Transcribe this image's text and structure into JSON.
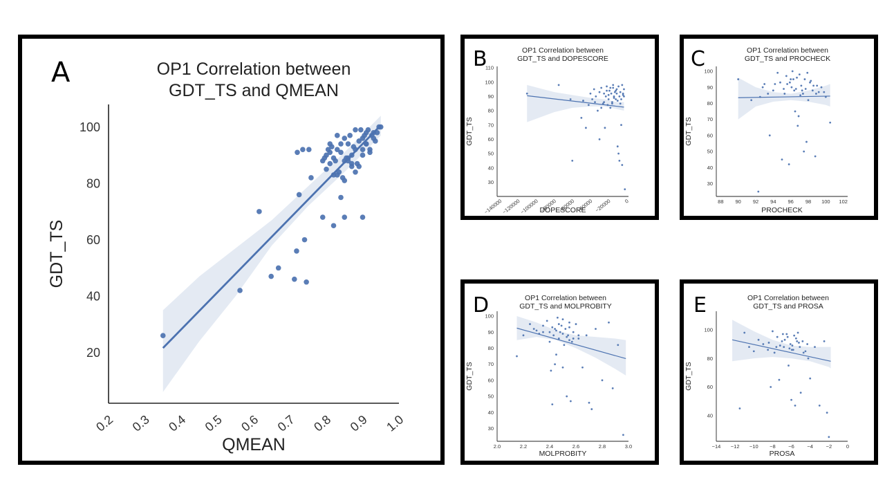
{
  "chart_data": [
    {
      "type": "scatter",
      "panel_label": "A",
      "title": "OP1 Correlation between\nGDT_TS and QMEAN",
      "xlabel": "QMEAN",
      "ylabel": "GDT_TS",
      "xlim": [
        0.2,
        1.0
      ],
      "ylim": [
        2,
        108
      ],
      "xticks": [
        0.2,
        0.3,
        0.4,
        0.5,
        0.6,
        0.7,
        0.8,
        0.9,
        1.0
      ],
      "xtick_labels": [
        "0.2",
        "0.3",
        "0.4",
        "0.5",
        "0.6",
        "0.7",
        "0.8",
        "0.9",
        "1.0"
      ],
      "yticks": [
        20,
        40,
        60,
        80,
        100
      ],
      "ytick_labels": [
        "20",
        "40",
        "60",
        "80",
        "100"
      ],
      "grid": false,
      "regression": {
        "x": [
          0.35,
          0.95
        ],
        "y": [
          21.6,
          100.6
        ]
      },
      "confidence_band": {
        "x": [
          0.35,
          0.45,
          0.55,
          0.65,
          0.75,
          0.85,
          0.95
        ],
        "lower": [
          6,
          24,
          40,
          58,
          72,
          84,
          97
        ],
        "upper": [
          35,
          47,
          57,
          67,
          79,
          91,
          104
        ]
      },
      "points": {
        "x": [
          0.35,
          0.562,
          0.615,
          0.648,
          0.668,
          0.712,
          0.718,
          0.72,
          0.725,
          0.74,
          0.745,
          0.752,
          0.758,
          0.79,
          0.795,
          0.81,
          0.82,
          0.84,
          0.85,
          0.9,
          0.735,
          0.79,
          0.8,
          0.805,
          0.81,
          0.815,
          0.82,
          0.825,
          0.83,
          0.835,
          0.84,
          0.845,
          0.85,
          0.855,
          0.86,
          0.865,
          0.87,
          0.875,
          0.88,
          0.885,
          0.89,
          0.895,
          0.9,
          0.905,
          0.91,
          0.915,
          0.92,
          0.925,
          0.93,
          0.935,
          0.94,
          0.945,
          0.95,
          0.8,
          0.83,
          0.86,
          0.87,
          0.88,
          0.9,
          0.92,
          0.85,
          0.9,
          0.91,
          0.86,
          0.88,
          0.84,
          0.87,
          0.82,
          0.81,
          0.83,
          0.89,
          0.91,
          0.93,
          0.85
        ],
        "y": [
          26,
          42,
          70,
          47,
          50,
          46,
          56,
          91,
          76,
          60,
          45,
          92,
          82,
          68,
          89,
          91,
          65,
          75,
          68,
          68,
          92,
          88,
          90,
          92,
          87,
          93,
          83,
          88,
          97,
          84,
          91,
          82,
          96,
          89,
          88,
          97,
          86,
          93,
          99,
          87,
          95,
          99,
          92,
          97,
          94,
          99,
          92,
          97,
          98,
          95,
          98,
          100,
          100,
          85,
          92,
          89,
          90,
          84,
          96,
          91,
          81,
          90,
          98,
          94,
          92,
          94,
          87,
          89,
          94,
          83,
          86,
          94,
          96,
          88
        ]
      }
    },
    {
      "type": "scatter",
      "panel_label": "B",
      "title": "OP1 Correlation between\nGDT_TS and DOPESCORE",
      "xlabel": "DOPESCORE",
      "ylabel": "GDT_TS",
      "xlim": [
        -143000,
        2000
      ],
      "ylim": [
        20,
        111
      ],
      "xticks": [
        -140000,
        -120000,
        -100000,
        -80000,
        -60000,
        -40000,
        -20000,
        0
      ],
      "xtick_labels": [
        "−140000",
        "−120000",
        "−100000",
        "−80000",
        "−60000",
        "−40000",
        "−20000",
        "0"
      ],
      "yticks": [
        30,
        40,
        50,
        60,
        70,
        80,
        90,
        100,
        110
      ],
      "ytick_labels": [
        "30",
        "40",
        "50",
        "60",
        "70",
        "80",
        "90",
        "100",
        "110"
      ],
      "grid": false,
      "regression": {
        "x": [
          -110000,
          -3000
        ],
        "y": [
          90.5,
          82.5
        ]
      },
      "confidence_band": {
        "x": [
          -110000,
          -80000,
          -60000,
          -40000,
          -25000,
          -10000,
          -3000
        ],
        "lower": [
          72,
          79,
          82,
          83,
          83,
          81,
          80
        ],
        "upper": [
          98,
          93,
          91,
          89,
          88,
          86,
          86
        ]
      },
      "points": {
        "x": [
          -110000,
          -75000,
          -62000,
          -60000,
          -50000,
          -48000,
          -45000,
          -42000,
          -40000,
          -38000,
          -36000,
          -34000,
          -32000,
          -30000,
          -28000,
          -26000,
          -25000,
          -24000,
          -23000,
          -22000,
          -21000,
          -20000,
          -19000,
          -18000,
          -17000,
          -16000,
          -15000,
          -14000,
          -13000,
          -12000,
          -11000,
          -10000,
          -9000,
          -8000,
          -7000,
          -6000,
          -5000,
          -4000,
          -3000,
          -2000,
          -30000,
          -20000,
          -10000,
          -15000,
          -25000,
          -8000,
          -5000,
          -12000,
          -6000,
          -18000,
          -35000,
          -28000,
          -22000,
          -14000,
          -9000,
          -4000,
          -7000,
          -3000,
          -16000,
          -11000
        ],
        "y": [
          92,
          98,
          88,
          45,
          75,
          87,
          68,
          84,
          92,
          88,
          95,
          90,
          80,
          60,
          96,
          85,
          92,
          68,
          90,
          97,
          84,
          88,
          94,
          82,
          92,
          86,
          98,
          90,
          93,
          88,
          95,
          55,
          50,
          45,
          85,
          70,
          42,
          92,
          95,
          25,
          93,
          91,
          87,
          96,
          86,
          90,
          98,
          94,
          88,
          96,
          86,
          82,
          94,
          89,
          97,
          91,
          93,
          90,
          85,
          92
        ]
      }
    },
    {
      "type": "scatter",
      "panel_label": "C",
      "title": "OP1 Correlation between\nGDT_TS and PROCHECK",
      "xlabel": "PROCHECK",
      "ylabel": "GDT_TS",
      "xlim": [
        87.5,
        102.5
      ],
      "ylim": [
        22,
        103
      ],
      "xticks": [
        88,
        90,
        92,
        94,
        96,
        98,
        100,
        102
      ],
      "xtick_labels": [
        "88",
        "90",
        "92",
        "94",
        "96",
        "98",
        "100",
        "102"
      ],
      "yticks": [
        30,
        40,
        50,
        60,
        70,
        80,
        90,
        100
      ],
      "ytick_labels": [
        "30",
        "40",
        "50",
        "60",
        "70",
        "80",
        "90",
        "100"
      ],
      "grid": false,
      "regression": {
        "x": [
          90,
          100.5
        ],
        "y": [
          83.5,
          84.5
        ]
      },
      "confidence_band": {
        "x": [
          90,
          92,
          94,
          96,
          98,
          100,
          100.5
        ],
        "lower": [
          70,
          78,
          81,
          82,
          81,
          79,
          78
        ],
        "upper": [
          96,
          90,
          87,
          86,
          88,
          91,
          92
        ]
      },
      "points": {
        "x": [
          90,
          91.5,
          92.3,
          92.5,
          93,
          93.6,
          94,
          94.5,
          95,
          95.3,
          95.6,
          95.8,
          96,
          96.2,
          96.4,
          96.5,
          96.6,
          96.8,
          97,
          97.2,
          97.4,
          97.5,
          97.6,
          97.8,
          98,
          98.2,
          98.5,
          98.8,
          99,
          99.5,
          100,
          100.5,
          95.5,
          96.1,
          97.3,
          98.3,
          99.2,
          94.8,
          96.9,
          97.9,
          95.2,
          93.4,
          97.1,
          98.6,
          96.3,
          92.8,
          99.8,
          95.9,
          97.7,
          96.7,
          98.9,
          94.2
        ],
        "y": [
          95,
          82,
          25,
          84,
          92,
          60,
          88,
          99,
          45,
          86,
          92,
          42,
          95,
          100,
          88,
          75,
          89,
          66,
          98,
          91,
          86,
          50,
          95,
          56,
          82,
          93,
          88,
          47,
          91,
          90,
          84,
          68,
          97,
          90,
          88,
          94,
          87,
          93,
          72,
          99,
          89,
          86,
          85,
          91,
          95,
          90,
          87,
          93,
          89,
          96,
          86,
          92
        ]
      }
    },
    {
      "type": "scatter",
      "panel_label": "D",
      "title": "OP1 Correlation between\nGDT_TS and MOLPROBITY",
      "xlabel": "MOLPROBITY",
      "ylabel": "GDT_TS",
      "xlim": [
        2.0,
        3.0
      ],
      "ylim": [
        22,
        103
      ],
      "xticks": [
        2.0,
        2.2,
        2.4,
        2.6,
        2.8,
        3.0
      ],
      "xtick_labels": [
        "2.0",
        "2.2",
        "2.4",
        "2.6",
        "2.8",
        "3.0"
      ],
      "yticks": [
        30,
        40,
        50,
        60,
        70,
        80,
        90,
        100
      ],
      "ytick_labels": [
        "30",
        "40",
        "50",
        "60",
        "70",
        "80",
        "90",
        "100"
      ],
      "grid": false,
      "regression": {
        "x": [
          2.15,
          2.98
        ],
        "y": [
          92.5,
          73.5
        ]
      },
      "confidence_band": {
        "x": [
          2.15,
          2.3,
          2.45,
          2.6,
          2.75,
          2.9,
          2.98
        ],
        "lower": [
          85,
          87,
          85,
          80,
          74,
          67,
          63
        ],
        "upper": [
          100,
          96,
          91,
          88,
          87,
          86,
          85
        ]
      },
      "points": {
        "x": [
          2.15,
          2.2,
          2.25,
          2.28,
          2.3,
          2.32,
          2.35,
          2.38,
          2.4,
          2.41,
          2.42,
          2.43,
          2.44,
          2.45,
          2.46,
          2.47,
          2.48,
          2.49,
          2.5,
          2.51,
          2.52,
          2.53,
          2.54,
          2.55,
          2.56,
          2.57,
          2.58,
          2.6,
          2.62,
          2.65,
          2.68,
          2.7,
          2.72,
          2.75,
          2.8,
          2.85,
          2.88,
          2.92,
          2.96,
          2.4,
          2.42,
          2.44,
          2.5,
          2.55,
          2.45,
          2.5,
          2.62,
          2.55,
          2.58,
          2.35,
          2.47,
          2.53
        ],
        "y": [
          75,
          88,
          95,
          92,
          91,
          89,
          94,
          97,
          84,
          66,
          45,
          88,
          92,
          76,
          99,
          86,
          90,
          94,
          68,
          82,
          92,
          50,
          88,
          96,
          47,
          84,
          90,
          95,
          86,
          68,
          88,
          46,
          42,
          92,
          60,
          96,
          55,
          82,
          26,
          90,
          93,
          70,
          98,
          85,
          91,
          89,
          88,
          93,
          86,
          90,
          95,
          87
        ]
      }
    },
    {
      "type": "scatter",
      "panel_label": "E",
      "title": "OP1 Correlation between\nGDT_TS and PROSA",
      "xlabel": "PROSA",
      "ylabel": "GDT_TS",
      "xlim": [
        -14,
        0
      ],
      "ylim": [
        22,
        113
      ],
      "xticks": [
        -14,
        -12,
        -10,
        -8,
        -6,
        -4,
        -2,
        0
      ],
      "xtick_labels": [
        "−14",
        "−12",
        "−10",
        "−8",
        "−6",
        "−4",
        "−2",
        "0"
      ],
      "yticks": [
        40,
        60,
        80,
        100
      ],
      "ytick_labels": [
        "40",
        "60",
        "80",
        "100"
      ],
      "grid": false,
      "regression": {
        "x": [
          -12.3,
          -1.8
        ],
        "y": [
          93,
          78
        ]
      },
      "confidence_band": {
        "x": [
          -12.3,
          -10,
          -8,
          -6,
          -4,
          -2,
          -1.8
        ],
        "lower": [
          78,
          80,
          81,
          80,
          78,
          74,
          73
        ],
        "upper": [
          107,
          99,
          93,
          89,
          88,
          88,
          88
        ]
      },
      "points": {
        "x": [
          -11.5,
          -11,
          -10.5,
          -10,
          -9.5,
          -9,
          -8.5,
          -8.2,
          -8,
          -7.8,
          -7.5,
          -7.3,
          -7,
          -6.8,
          -6.5,
          -6.3,
          -6.1,
          -6,
          -5.8,
          -5.6,
          -5.5,
          -5.3,
          -5.1,
          -5,
          -4.8,
          -4.5,
          -4.3,
          -4,
          -3.5,
          -3,
          -2.5,
          -2.2,
          -2,
          -7.2,
          -6.7,
          -6.2,
          -5.7,
          -5.2,
          -4.7,
          -6.4,
          -5.9,
          -5.4,
          -7.6,
          -8.4,
          -4.2,
          -6.9,
          -5.95
        ],
        "y": [
          45,
          98,
          88,
          85,
          93,
          90,
          86,
          60,
          99,
          84,
          95,
          65,
          92,
          88,
          97,
          75,
          90,
          51,
          86,
          47,
          94,
          98,
          88,
          56,
          92,
          85,
          90,
          66,
          88,
          47,
          92,
          42,
          25,
          89,
          93,
          87,
          96,
          91,
          84,
          95,
          89,
          92,
          88,
          91,
          80,
          97,
          86
        ]
      }
    }
  ]
}
